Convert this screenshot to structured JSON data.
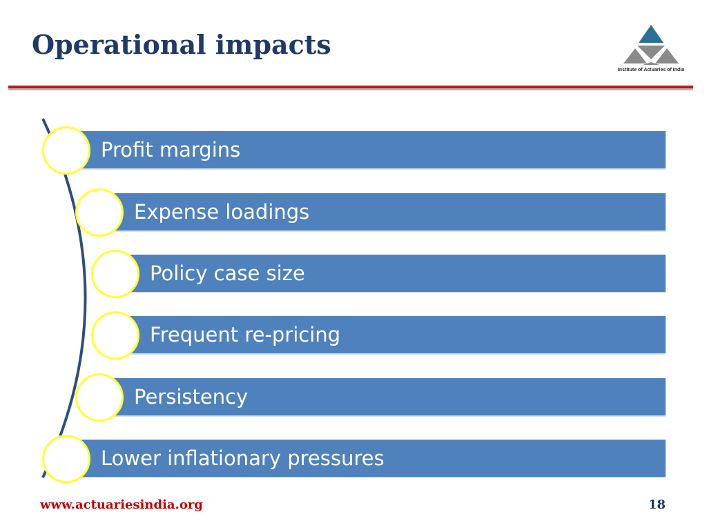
{
  "slide": {
    "title": "Operational impacts",
    "logo_caption": "Institute of Actuaries of India",
    "items": [
      {
        "label": "Profit margins"
      },
      {
        "label": "Expense loadings"
      },
      {
        "label": "Policy case size"
      },
      {
        "label": "Frequent re-pricing"
      },
      {
        "label": "Persistency"
      },
      {
        "label": "Lower inflationary pressures"
      }
    ],
    "footer_url": "www.actuariesindia.org",
    "page_number": "18"
  },
  "colors": {
    "title": "#1f3a68",
    "bar": "#4f81bd",
    "circle_border": "#ffff33",
    "rule": "#c0141c",
    "footer_url": "#c00000"
  },
  "icons": {
    "logo": "institute-triangle-logo"
  }
}
